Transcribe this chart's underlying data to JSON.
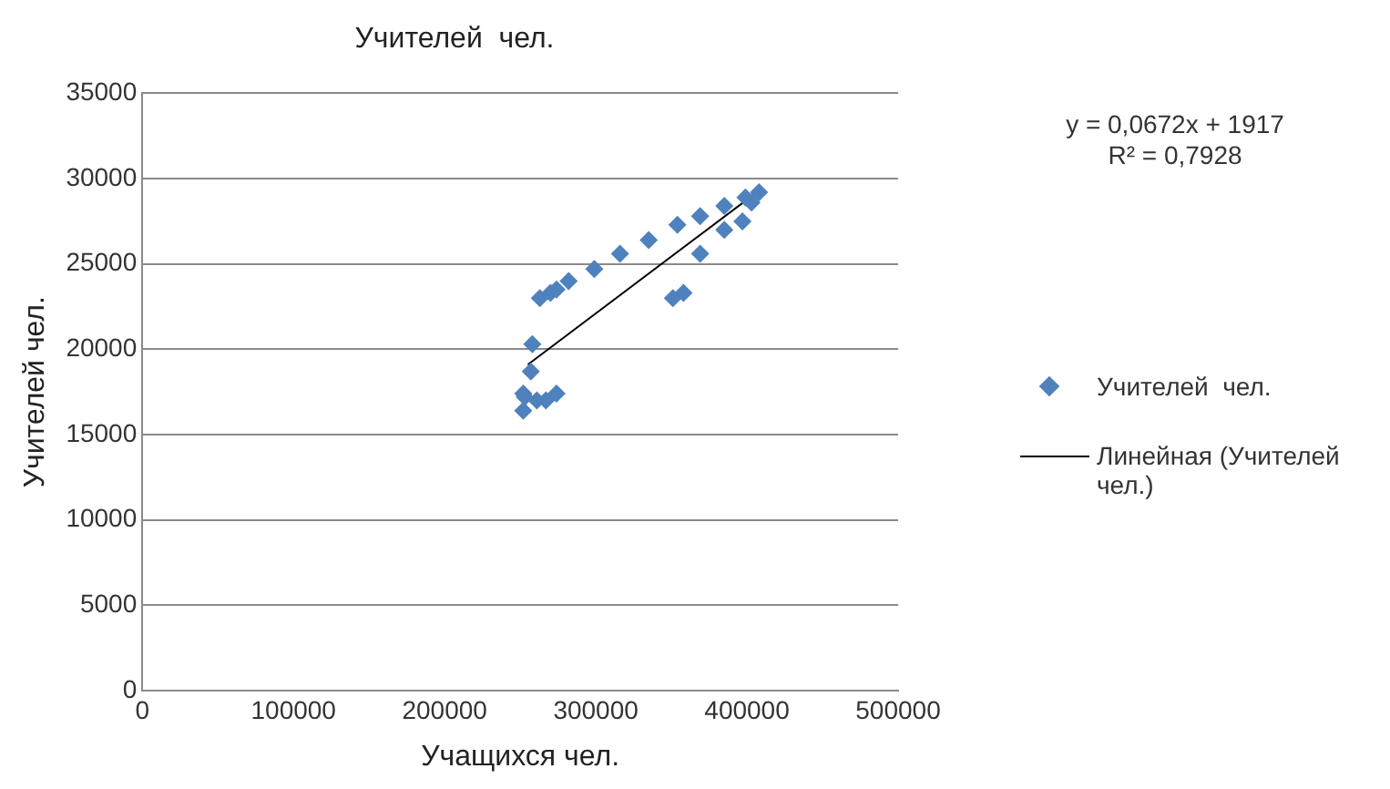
{
  "chart_data": {
    "type": "scatter",
    "title": "Учителей  чел.",
    "xlabel": "Учащихся чел.",
    "ylabel": "Учителей чел.",
    "xlim": [
      0,
      500000
    ],
    "xticks": [
      0,
      100000,
      200000,
      300000,
      400000,
      500000
    ],
    "ylim": [
      0,
      35000
    ],
    "yticks": [
      0,
      5000,
      10000,
      15000,
      20000,
      25000,
      30000,
      35000
    ],
    "grid": "y",
    "legend": "right",
    "marker": "diamond",
    "annotations": [
      "y = 0,0672x + 1917",
      "R² = 0,7928"
    ],
    "series": [
      {
        "name": "Учителей  чел.",
        "color": "#4f81bd",
        "x": [
          252000,
          252000,
          253000,
          257000,
          258000,
          261000,
          263000,
          267000,
          270000,
          274000,
          274000,
          282000,
          299000,
          316000,
          335000,
          351000,
          354000,
          358000,
          369000,
          369000,
          385000,
          385000,
          397000,
          399000,
          403000,
          408000
        ],
        "values": [
          16400,
          17400,
          17200,
          18700,
          20300,
          17000,
          23000,
          17000,
          23300,
          23500,
          17400,
          24000,
          24700,
          25600,
          26400,
          23000,
          27300,
          23300,
          27800,
          25600,
          27000,
          28400,
          27500,
          28900,
          28600,
          29200
        ]
      },
      {
        "name": "Линейная (Учителей чел.)",
        "type": "line",
        "color": "#000000",
        "marker": "none",
        "x": [
          255000,
          408000
        ],
        "values": [
          19100,
          29300
        ]
      }
    ]
  }
}
